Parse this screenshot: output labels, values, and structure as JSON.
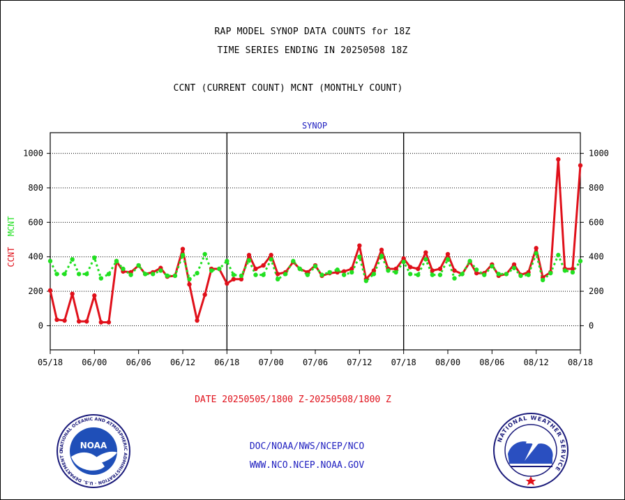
{
  "titles": {
    "line1": "RAP MODEL SYNOP DATA COUNTS for 18Z",
    "line2": "TIME SERIES ENDING IN 20250508 18Z",
    "line3": "CCNT (CURRENT COUNT) MCNT (MONTHLY COUNT)"
  },
  "footer": {
    "date_range": "DATE 20250505/1800 Z-20250508/1800 Z",
    "org": "DOC/NOAA/NWS/NCEP/NCO",
    "url": "WWW.NCO.NCEP.NOAA.GOV"
  },
  "logos": {
    "left": {
      "text": "NOAA",
      "ring_text": "NATIONAL OCEANIC AND ATMOSPHERIC ADMINISTRATION · U.S. DEPARTMENT OF COMMERCE",
      "icon": "noaa-logo-icon"
    },
    "right": {
      "ring_text": "NATIONAL WEATHER SERVICE",
      "icon": "nws-logo-icon"
    }
  },
  "chart_data": {
    "type": "line",
    "title": "SYNOP",
    "ylabel_parts": [
      {
        "text": "CCNT",
        "color": "#e0101a"
      },
      {
        "text": "MCNT",
        "color": "#20e020"
      }
    ],
    "ylim": [
      -140,
      1120
    ],
    "yticks": [
      0,
      200,
      400,
      600,
      800,
      1000
    ],
    "xlim": [
      0,
      48
    ],
    "xticks": [
      {
        "x": 0,
        "label": "05/18"
      },
      {
        "x": 4,
        "label": "06/00"
      },
      {
        "x": 8,
        "label": "06/06"
      },
      {
        "x": 12,
        "label": "06/12"
      },
      {
        "x": 16,
        "label": "06/18"
      },
      {
        "x": 20,
        "label": "07/00"
      },
      {
        "x": 24,
        "label": "07/06"
      },
      {
        "x": 28,
        "label": "07/12"
      },
      {
        "x": 32,
        "label": "07/18"
      },
      {
        "x": 36,
        "label": "08/00"
      },
      {
        "x": 40,
        "label": "08/06"
      },
      {
        "x": 44,
        "label": "08/12"
      },
      {
        "x": 48,
        "label": "08/18"
      }
    ],
    "day_dividers": [
      16,
      32
    ],
    "grid": "horizontal-dotted",
    "x_step_hours": 1.5,
    "series": [
      {
        "name": "CCNT",
        "color": "#e0101a",
        "style": "solid",
        "x": [
          0,
          0.6,
          1.3,
          2,
          2.6,
          3.3,
          4,
          4.6,
          5.3,
          6,
          6.6,
          7.3,
          8,
          8.6,
          9.3,
          10,
          10.6,
          11.3,
          12,
          12.6,
          13.3,
          14,
          14.6,
          15.3,
          16,
          16.6,
          17.3,
          18,
          18.6,
          19.3,
          20,
          20.6,
          21.3,
          22,
          22.6,
          23.3,
          24,
          24.6,
          25.3,
          26,
          26.6,
          27.3,
          28,
          28.6,
          29.3,
          30,
          30.6,
          31.3,
          32,
          32.6,
          33.3,
          34,
          34.6,
          35.3,
          36,
          36.6,
          37.3,
          38,
          38.6,
          39.3,
          40,
          40.6,
          41.3,
          42,
          42.6,
          43.3,
          44,
          44.6,
          45.3,
          46,
          46.6,
          47.3,
          48
        ],
        "values": [
          205,
          35,
          30,
          185,
          25,
          25,
          175,
          20,
          20,
          375,
          315,
          310,
          350,
          300,
          310,
          335,
          285,
          290,
          445,
          240,
          30,
          180,
          330,
          330,
          245,
          270,
          270,
          410,
          330,
          350,
          410,
          300,
          310,
          370,
          330,
          310,
          350,
          290,
          305,
          310,
          315,
          330,
          465,
          270,
          320,
          440,
          330,
          330,
          390,
          340,
          330,
          425,
          320,
          330,
          415,
          320,
          300,
          370,
          305,
          305,
          355,
          290,
          300,
          355,
          295,
          310,
          450,
          280,
          310,
          965,
          330,
          330,
          930
        ]
      },
      {
        "name": "MCNT",
        "color": "#20e020",
        "style": "dotted",
        "x": [
          0,
          0.6,
          1.3,
          2,
          2.6,
          3.3,
          4,
          4.6,
          5.3,
          6,
          6.6,
          7.3,
          8,
          8.6,
          9.3,
          10,
          10.6,
          11.3,
          12,
          12.6,
          13.3,
          14,
          14.6,
          15.3,
          16,
          16.6,
          17.3,
          18,
          18.6,
          19.3,
          20,
          20.6,
          21.3,
          22,
          22.6,
          23.3,
          24,
          24.6,
          25.3,
          26,
          26.6,
          27.3,
          28,
          28.6,
          29.3,
          30,
          30.6,
          31.3,
          32,
          32.6,
          33.3,
          34,
          34.6,
          35.3,
          36,
          36.6,
          37.3,
          38,
          38.6,
          39.3,
          40,
          40.6,
          41.3,
          42,
          42.6,
          43.3,
          44,
          44.6,
          45.3,
          46,
          46.6,
          47.3,
          48
        ],
        "values": [
          375,
          300,
          300,
          385,
          300,
          300,
          395,
          275,
          300,
          375,
          330,
          295,
          350,
          300,
          300,
          320,
          290,
          290,
          410,
          270,
          305,
          415,
          320,
          330,
          375,
          295,
          290,
          380,
          295,
          295,
          385,
          270,
          300,
          375,
          330,
          295,
          345,
          295,
          310,
          325,
          295,
          310,
          400,
          260,
          300,
          405,
          320,
          310,
          370,
          300,
          295,
          385,
          295,
          295,
          385,
          275,
          300,
          375,
          325,
          295,
          345,
          300,
          300,
          335,
          290,
          295,
          420,
          265,
          305,
          410,
          320,
          310,
          375
        ]
      }
    ]
  }
}
